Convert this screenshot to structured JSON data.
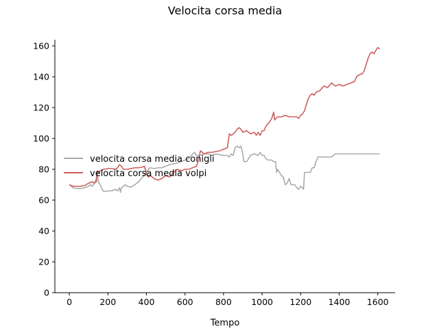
{
  "chart_data": {
    "type": "line",
    "title": "Velocita corsa media",
    "xlabel": "Tempo",
    "ylabel": "",
    "xlim": [
      -75,
      1690
    ],
    "ylim": [
      0,
      164
    ],
    "xticks": [
      0,
      200,
      400,
      600,
      800,
      1000,
      1200,
      1400,
      1600
    ],
    "yticks": [
      0,
      20,
      40,
      60,
      80,
      100,
      120,
      140,
      160
    ],
    "grid": false,
    "legend_position": "center-left",
    "series": [
      {
        "name": "velocita corsa media conigli",
        "color": "#a9a9a9",
        "points": [
          [
            0,
            70
          ],
          [
            20,
            68
          ],
          [
            40,
            67.5
          ],
          [
            60,
            67.5
          ],
          [
            80,
            68
          ],
          [
            100,
            69
          ],
          [
            110,
            70
          ],
          [
            120,
            69
          ],
          [
            130,
            71
          ],
          [
            140,
            74
          ],
          [
            145,
            78
          ],
          [
            150,
            72
          ],
          [
            160,
            70
          ],
          [
            170,
            67
          ],
          [
            180,
            65.5
          ],
          [
            200,
            66
          ],
          [
            220,
            66
          ],
          [
            240,
            67
          ],
          [
            250,
            66
          ],
          [
            260,
            68
          ],
          [
            265,
            65
          ],
          [
            270,
            68
          ],
          [
            280,
            69
          ],
          [
            290,
            70
          ],
          [
            300,
            69
          ],
          [
            320,
            68.5
          ],
          [
            340,
            70
          ],
          [
            360,
            72
          ],
          [
            380,
            75
          ],
          [
            390,
            77
          ],
          [
            400,
            78
          ],
          [
            410,
            80
          ],
          [
            420,
            81
          ],
          [
            440,
            80.5
          ],
          [
            460,
            81
          ],
          [
            480,
            81
          ],
          [
            500,
            82
          ],
          [
            520,
            83
          ],
          [
            540,
            83.5
          ],
          [
            560,
            84
          ],
          [
            580,
            85
          ],
          [
            600,
            86
          ],
          [
            620,
            87
          ],
          [
            640,
            90
          ],
          [
            650,
            91
          ],
          [
            660,
            89
          ],
          [
            680,
            89
          ],
          [
            700,
            90
          ],
          [
            720,
            90
          ],
          [
            740,
            89
          ],
          [
            760,
            90
          ],
          [
            780,
            89.5
          ],
          [
            800,
            89
          ],
          [
            820,
            89
          ],
          [
            830,
            88
          ],
          [
            840,
            90
          ],
          [
            850,
            89
          ],
          [
            860,
            94
          ],
          [
            870,
            95
          ],
          [
            880,
            94
          ],
          [
            890,
            95
          ],
          [
            900,
            90
          ],
          [
            905,
            85
          ],
          [
            920,
            85
          ],
          [
            940,
            89
          ],
          [
            960,
            90
          ],
          [
            980,
            89
          ],
          [
            990,
            91
          ],
          [
            1000,
            89
          ],
          [
            1010,
            89
          ],
          [
            1020,
            87
          ],
          [
            1030,
            86
          ],
          [
            1050,
            86
          ],
          [
            1060,
            85
          ],
          [
            1070,
            85
          ],
          [
            1075,
            78
          ],
          [
            1080,
            80
          ],
          [
            1090,
            78
          ],
          [
            1100,
            76
          ],
          [
            1110,
            75
          ],
          [
            1120,
            70
          ],
          [
            1130,
            71
          ],
          [
            1140,
            74
          ],
          [
            1150,
            70
          ],
          [
            1160,
            70
          ],
          [
            1170,
            70
          ],
          [
            1180,
            68
          ],
          [
            1190,
            67
          ],
          [
            1200,
            69
          ],
          [
            1210,
            68
          ],
          [
            1215,
            67
          ],
          [
            1220,
            78
          ],
          [
            1240,
            78
          ],
          [
            1250,
            78
          ],
          [
            1260,
            81
          ],
          [
            1270,
            81
          ],
          [
            1280,
            85
          ],
          [
            1290,
            88
          ],
          [
            1300,
            88
          ],
          [
            1320,
            88
          ],
          [
            1340,
            88
          ],
          [
            1360,
            88
          ],
          [
            1370,
            89
          ],
          [
            1380,
            90
          ],
          [
            1400,
            90
          ],
          [
            1450,
            90
          ],
          [
            1500,
            90
          ],
          [
            1550,
            90
          ],
          [
            1600,
            90
          ],
          [
            1610,
            90
          ]
        ]
      },
      {
        "name": "velocita corsa media volpi",
        "color": "#cd5c5c",
        "points": [
          [
            0,
            70
          ],
          [
            20,
            69
          ],
          [
            40,
            69
          ],
          [
            60,
            69
          ],
          [
            80,
            69.5
          ],
          [
            100,
            71
          ],
          [
            120,
            72
          ],
          [
            130,
            71
          ],
          [
            140,
            72
          ],
          [
            145,
            79
          ],
          [
            150,
            78
          ],
          [
            160,
            79
          ],
          [
            180,
            80
          ],
          [
            200,
            80.5
          ],
          [
            220,
            80.5
          ],
          [
            240,
            80
          ],
          [
            250,
            81
          ],
          [
            260,
            83
          ],
          [
            270,
            82
          ],
          [
            280,
            80
          ],
          [
            300,
            80
          ],
          [
            320,
            80.5
          ],
          [
            340,
            81
          ],
          [
            360,
            81
          ],
          [
            380,
            81.5
          ],
          [
            390,
            82
          ],
          [
            400,
            77
          ],
          [
            410,
            75
          ],
          [
            420,
            76
          ],
          [
            440,
            74
          ],
          [
            460,
            73
          ],
          [
            480,
            74
          ],
          [
            500,
            76
          ],
          [
            520,
            75
          ],
          [
            540,
            78
          ],
          [
            560,
            80
          ],
          [
            580,
            79
          ],
          [
            600,
            80
          ],
          [
            620,
            80
          ],
          [
            640,
            81
          ],
          [
            660,
            82
          ],
          [
            670,
            86
          ],
          [
            680,
            92
          ],
          [
            700,
            90
          ],
          [
            720,
            91
          ],
          [
            740,
            91
          ],
          [
            760,
            91.5
          ],
          [
            780,
            92
          ],
          [
            800,
            93
          ],
          [
            820,
            94
          ],
          [
            830,
            103
          ],
          [
            840,
            102
          ],
          [
            860,
            104
          ],
          [
            870,
            106
          ],
          [
            880,
            107
          ],
          [
            890,
            106
          ],
          [
            900,
            104
          ],
          [
            920,
            105
          ],
          [
            940,
            103
          ],
          [
            960,
            104
          ],
          [
            970,
            102
          ],
          [
            980,
            104
          ],
          [
            990,
            102
          ],
          [
            1000,
            105
          ],
          [
            1010,
            105
          ],
          [
            1020,
            108
          ],
          [
            1040,
            111
          ],
          [
            1050,
            113
          ],
          [
            1060,
            117
          ],
          [
            1065,
            112
          ],
          [
            1080,
            114
          ],
          [
            1100,
            114
          ],
          [
            1120,
            115
          ],
          [
            1140,
            114
          ],
          [
            1160,
            114
          ],
          [
            1180,
            114
          ],
          [
            1190,
            113
          ],
          [
            1200,
            115
          ],
          [
            1210,
            116
          ],
          [
            1220,
            118
          ],
          [
            1230,
            122
          ],
          [
            1240,
            126
          ],
          [
            1250,
            128
          ],
          [
            1260,
            129
          ],
          [
            1270,
            128
          ],
          [
            1280,
            130
          ],
          [
            1300,
            131
          ],
          [
            1320,
            134
          ],
          [
            1340,
            133
          ],
          [
            1360,
            136
          ],
          [
            1380,
            134
          ],
          [
            1400,
            135
          ],
          [
            1420,
            134
          ],
          [
            1440,
            135
          ],
          [
            1460,
            136
          ],
          [
            1480,
            137
          ],
          [
            1490,
            140
          ],
          [
            1500,
            141
          ],
          [
            1520,
            142
          ],
          [
            1530,
            144
          ],
          [
            1540,
            148
          ],
          [
            1550,
            152
          ],
          [
            1560,
            155
          ],
          [
            1570,
            156
          ],
          [
            1580,
            155
          ],
          [
            1590,
            157
          ],
          [
            1600,
            159
          ],
          [
            1610,
            158
          ]
        ]
      }
    ]
  }
}
